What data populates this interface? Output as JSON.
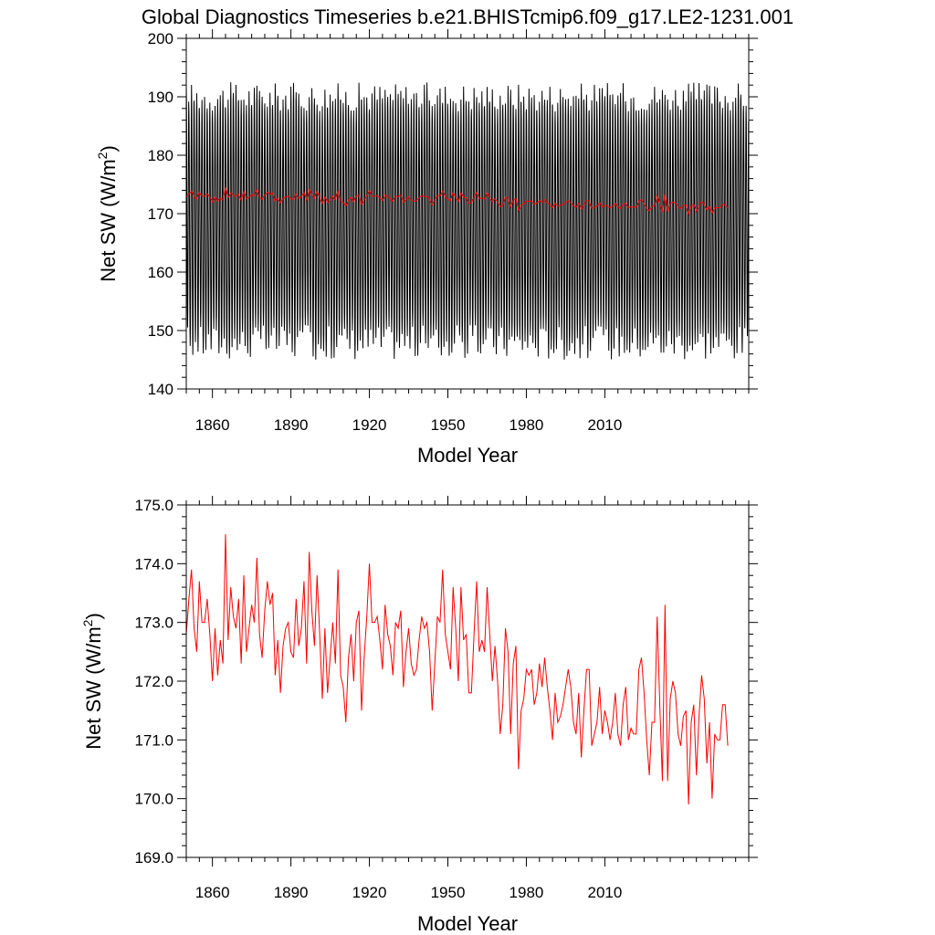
{
  "title": "Global Diagnostics Timeseries b.e21.BHISTcmip6.f09_g17.LE2-1231.001",
  "colors": {
    "monthly_line": "#000000",
    "annual_line": "#ff0000",
    "axis": "#000000"
  },
  "chart_data": [
    {
      "type": "line",
      "xlabel": "Model Year",
      "ylabel_main": "Net SW (W/m",
      "ylabel_sup": "2",
      "ylabel_close": ")",
      "xlim": [
        1850,
        2065
      ],
      "ylim": [
        140,
        200
      ],
      "xticks": [
        1860,
        1890,
        1920,
        1950,
        1980,
        2010
      ],
      "yticks": [
        140,
        150,
        160,
        170,
        180,
        190,
        200
      ],
      "ytick_labels": [
        "140",
        "150",
        "160",
        "170",
        "180",
        "190",
        "200"
      ],
      "series": [
        {
          "name": "monthly",
          "color": "#000000",
          "generator": "seasonal",
          "annual_cycle_max_range": [
            187.5,
            192.5
          ],
          "annual_cycle_min_range": [
            145,
            151
          ],
          "start_year": 1850,
          "end_year": 2065,
          "points_per_year": 12
        },
        {
          "name": "annual_mean",
          "color": "#ff0000",
          "ref": "annual"
        }
      ]
    },
    {
      "type": "line",
      "xlabel": "Model Year",
      "ylabel_main": "Net SW (W/m",
      "ylabel_sup": "2",
      "ylabel_close": ")",
      "xlim": [
        1850,
        2065
      ],
      "ylim": [
        169.0,
        175.0
      ],
      "xticks": [
        1860,
        1890,
        1920,
        1950,
        1980,
        2010
      ],
      "yticks": [
        169,
        170,
        171,
        172,
        173,
        174,
        175
      ],
      "ytick_labels": [
        "169.0",
        "170.0",
        "171.0",
        "172.0",
        "173.0",
        "174.0",
        "175.0"
      ],
      "series": [
        {
          "name": "annual_mean",
          "color": "#ff0000",
          "ref": "annual"
        }
      ]
    }
  ],
  "annual": {
    "x_start": 1850,
    "x_step": 1,
    "values": [
      172.8,
      173.4,
      173.9,
      172.9,
      172.5,
      173.7,
      173.0,
      173.0,
      173.4,
      172.8,
      172.0,
      172.9,
      172.1,
      172.7,
      172.3,
      174.5,
      172.7,
      173.6,
      173.1,
      172.9,
      173.4,
      172.3,
      173.8,
      172.5,
      172.9,
      173.3,
      173.0,
      174.1,
      172.8,
      172.4,
      173.2,
      173.7,
      173.3,
      173.5,
      172.1,
      172.7,
      171.8,
      172.6,
      172.9,
      173.0,
      172.5,
      172.4,
      173.4,
      172.6,
      172.9,
      173.7,
      172.3,
      174.2,
      173.2,
      172.6,
      173.8,
      172.8,
      171.7,
      172.9,
      171.8,
      172.4,
      173.0,
      172.3,
      173.9,
      172.1,
      171.9,
      171.3,
      172.4,
      172.8,
      172.0,
      173.0,
      173.2,
      171.5,
      172.4,
      173.1,
      174.0,
      173.0,
      173.0,
      173.1,
      172.7,
      172.2,
      173.3,
      172.8,
      172.6,
      172.1,
      173.0,
      172.9,
      173.2,
      171.9,
      172.5,
      172.9,
      172.3,
      172.1,
      172.2,
      172.7,
      173.1,
      172.9,
      173.0,
      172.5,
      171.5,
      172.3,
      173.1,
      173.0,
      173.9,
      172.8,
      172.5,
      172.2,
      173.6,
      172.9,
      172.0,
      173.6,
      172.7,
      172.8,
      171.8,
      171.8,
      172.8,
      173.7,
      172.5,
      172.7,
      172.5,
      173.6,
      172.8,
      172.0,
      172.6,
      172.0,
      171.1,
      171.6,
      172.9,
      172.5,
      171.1,
      172.3,
      172.6,
      170.5,
      171.5,
      171.7,
      172.2,
      172.1,
      172.2,
      171.6,
      171.8,
      172.3,
      171.9,
      172.4,
      171.9,
      171.5,
      171.0,
      171.8,
      171.3,
      171.4,
      171.6,
      171.9,
      172.2,
      171.9,
      171.3,
      171.1,
      171.8,
      170.7,
      171.5,
      172.2,
      172.2,
      170.9,
      171.1,
      171.3,
      171.9,
      171.1,
      171.5,
      171.3,
      171.0,
      171.3,
      171.8,
      171.1,
      170.9,
      171.6,
      171.9,
      171.0,
      171.2,
      171.1,
      171.1,
      172.2,
      172.4,
      171.8,
      171.0,
      170.4,
      171.3,
      171.3,
      173.1,
      171.6,
      170.3,
      173.3,
      170.3,
      171.7,
      172.0,
      171.8,
      171.1,
      170.9,
      171.4,
      171.5,
      169.9,
      171.3,
      171.6,
      170.4,
      171.4,
      172.1,
      171.7,
      170.6,
      171.3,
      170.0,
      171.1,
      171.0,
      171.0,
      171.6,
      171.6,
      170.9
    ]
  },
  "annual_x_first_drawn": 1850,
  "annual_x_last_drawn": 2063
}
